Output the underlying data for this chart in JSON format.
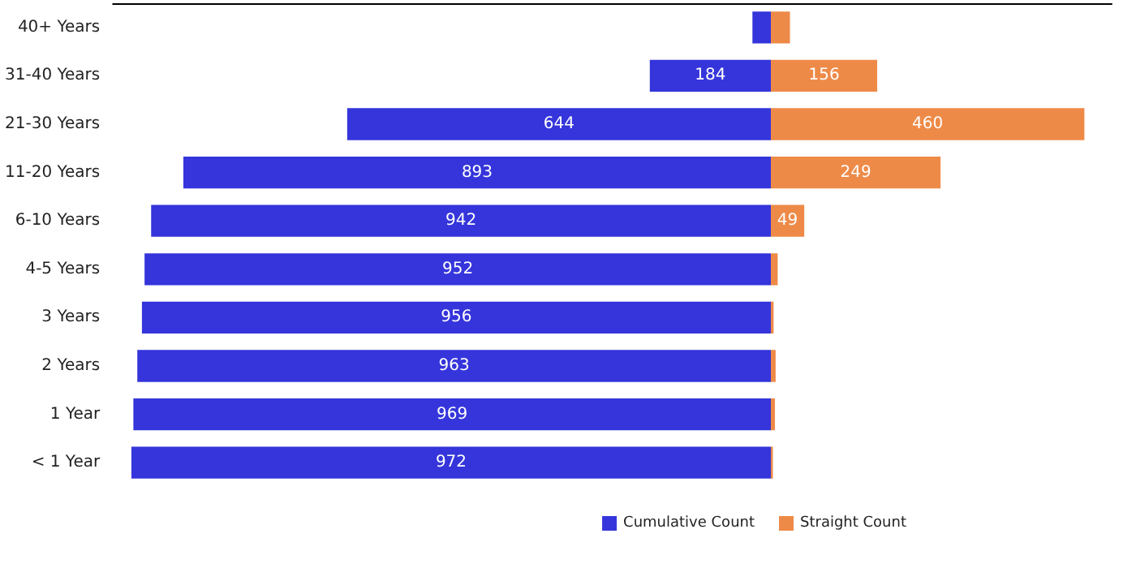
{
  "chart_data": [
    {
      "type": "bar",
      "orientation": "horizontal",
      "categories": [
        "40+ Years",
        "31-40 Years",
        "21-30 Years",
        "11-20 Years",
        "6-10 Years",
        "4-5 Years",
        "3 Years",
        "2 Years",
        "1 Year",
        "< 1 Year"
      ],
      "series": [
        {
          "name": "Cumulative Count",
          "color": "#3535db",
          "values": [
            28,
            184,
            644,
            893,
            942,
            952,
            956,
            963,
            969,
            972
          ],
          "value_labels": [
            null,
            "184",
            "644",
            "893",
            "942",
            "952",
            "956",
            "963",
            "969",
            "972"
          ]
        }
      ],
      "xlim": [
        1000,
        0
      ],
      "tick_labels": "y",
      "grid": false,
      "legend": "bottom right"
    },
    {
      "type": "bar",
      "orientation": "horizontal",
      "categories": [
        null,
        null,
        null,
        null,
        null,
        null,
        null,
        null,
        null,
        null
      ],
      "series": [
        {
          "name": "Straight Count",
          "color": "#ee8a48",
          "values": [
            28,
            156,
            460,
            249,
            49,
            10,
            4,
            7,
            6,
            3
          ],
          "value_labels": [
            null,
            "156",
            "460",
            "249",
            "49",
            null,
            null,
            null,
            null,
            null
          ]
        }
      ],
      "xlim": [
        0,
        500
      ],
      "tick_labels": false,
      "grid": false,
      "legend": "bottom left"
    }
  ]
}
